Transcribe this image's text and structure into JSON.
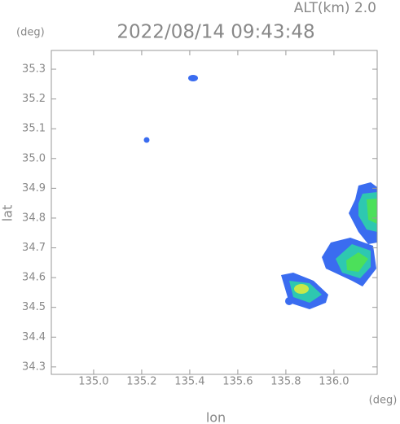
{
  "chart_data": {
    "type": "radar-map",
    "title": "2022/08/14 09:43:48",
    "subtitle": "ALT(km) 2.0",
    "y_unit": "(deg)",
    "x_unit": "(deg)",
    "x_label": "lon",
    "y_label": "lat",
    "xlim": [
      134.824,
      136.18
    ],
    "ylim": [
      34.275,
      35.363
    ],
    "xticks": [
      {
        "value": 135.0,
        "label": "135.0"
      },
      {
        "value": 135.2,
        "label": "135.2"
      },
      {
        "value": 135.4,
        "label": "135.4"
      },
      {
        "value": 135.6,
        "label": "135.6"
      },
      {
        "value": 135.8,
        "label": "135.8"
      },
      {
        "value": 136.0,
        "label": "136.0"
      }
    ],
    "yticks": [
      {
        "value": 34.3,
        "label": "34.3"
      },
      {
        "value": 34.4,
        "label": "34.4"
      },
      {
        "value": 34.5,
        "label": "34.5"
      },
      {
        "value": 34.6,
        "label": "34.6"
      },
      {
        "value": 34.7,
        "label": "34.7"
      },
      {
        "value": 34.8,
        "label": "34.8"
      },
      {
        "value": 34.9,
        "label": "34.9"
      },
      {
        "value": 35.0,
        "label": "35.0"
      },
      {
        "value": 35.1,
        "label": "35.1"
      },
      {
        "value": 35.2,
        "label": "35.2"
      },
      {
        "value": 35.3,
        "label": "35.3"
      }
    ]
  }
}
